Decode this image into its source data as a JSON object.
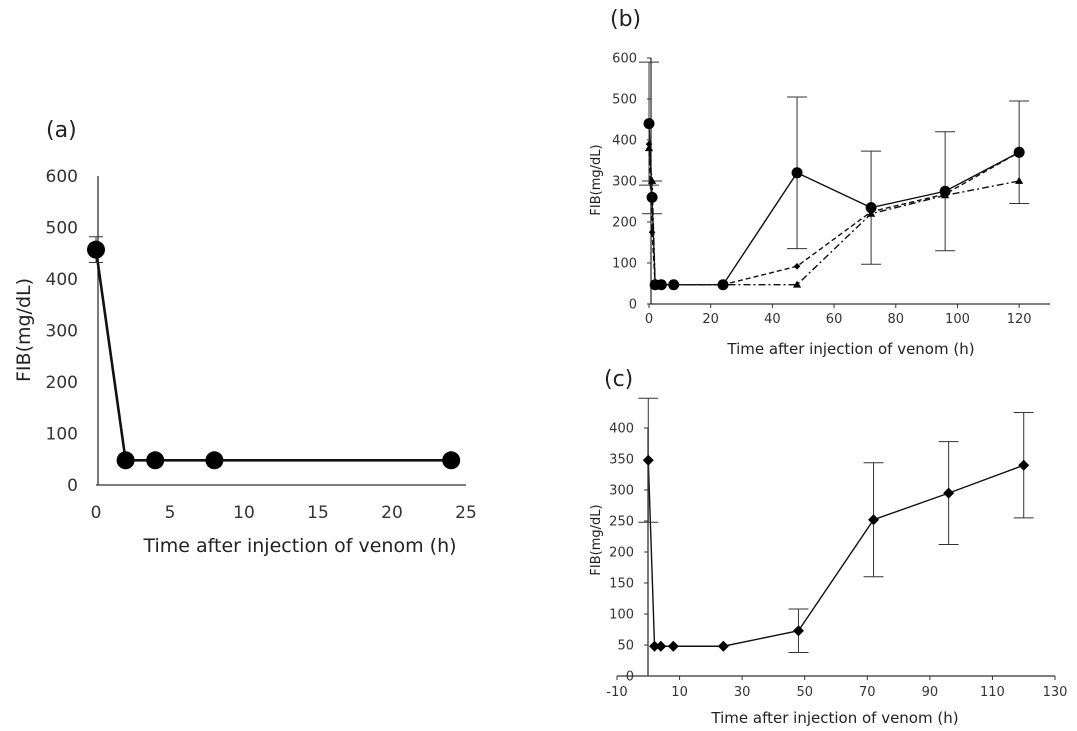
{
  "chart_data": [
    {
      "panel": "(a)",
      "type": "line",
      "xlabel": "Time after injection of venom (h)",
      "ylabel": "FIB(mg/dL)",
      "xlim": [
        0,
        25
      ],
      "ylim": [
        0,
        600
      ],
      "xticks": [
        0,
        5,
        10,
        15,
        20,
        25
      ],
      "yticks": [
        0,
        100,
        200,
        300,
        400,
        500,
        600
      ],
      "series": [
        {
          "name": "FIB",
          "marker": "circle",
          "x": [
            0,
            2,
            4,
            8,
            24
          ],
          "values": [
            457,
            48,
            48,
            48,
            48
          ],
          "error": [
            25,
            0,
            0,
            0,
            0
          ]
        }
      ]
    },
    {
      "panel": "(b)",
      "type": "line",
      "xlabel": "Time after injection of venom (h)",
      "ylabel": "FIB(mg/dL)",
      "xlim": [
        0,
        130
      ],
      "ylim": [
        0,
        600
      ],
      "xticks": [
        0,
        20,
        40,
        60,
        80,
        100,
        120
      ],
      "yticks": [
        0,
        100,
        200,
        300,
        400,
        500,
        600
      ],
      "series": [
        {
          "name": "circle series",
          "marker": "circle",
          "line": "solid",
          "x": [
            0,
            1,
            2,
            4,
            8,
            24,
            48,
            72,
            96,
            120
          ],
          "values": [
            440,
            260,
            47,
            47,
            47,
            47,
            320,
            235,
            275,
            370
          ],
          "error": [
            150,
            40,
            0,
            0,
            0,
            0,
            185,
            138,
            145,
            125
          ]
        },
        {
          "name": "diamond series",
          "marker": "diamond",
          "line": "dashed",
          "x": [
            0,
            1,
            2,
            4,
            8,
            24,
            48,
            72,
            96,
            120
          ],
          "values": [
            390,
            175,
            47,
            47,
            47,
            47,
            92,
            225,
            268,
            370
          ],
          "error": [
            0,
            0,
            0,
            0,
            0,
            0,
            0,
            0,
            0,
            0
          ]
        },
        {
          "name": "triangle series",
          "marker": "triangle",
          "line": "dash-dot",
          "x": [
            0,
            1,
            2,
            4,
            8,
            24,
            48,
            72,
            96,
            120
          ],
          "values": [
            380,
            300,
            47,
            47,
            47,
            47,
            47,
            220,
            265,
            300
          ],
          "error": [
            0,
            0,
            0,
            0,
            0,
            0,
            0,
            0,
            0,
            0
          ]
        }
      ]
    },
    {
      "panel": "(c)",
      "type": "line",
      "xlabel": "Time after injection of venom (h)",
      "ylabel": "FIB(mg/dL)",
      "xlim": [
        -10,
        130
      ],
      "ylim": [
        0,
        400
      ],
      "xticks": [
        -10,
        10,
        30,
        50,
        70,
        90,
        110,
        130
      ],
      "yticks": [
        0,
        50,
        100,
        150,
        200,
        250,
        300,
        350,
        400
      ],
      "series": [
        {
          "name": "FIB",
          "marker": "diamond",
          "line": "solid",
          "x": [
            0,
            2,
            4,
            8,
            24,
            48,
            72,
            96,
            120
          ],
          "values": [
            348,
            48,
            48,
            48,
            48,
            73,
            252,
            295,
            340
          ],
          "error": [
            100,
            0,
            0,
            0,
            0,
            35,
            92,
            83,
            85
          ]
        }
      ]
    }
  ]
}
